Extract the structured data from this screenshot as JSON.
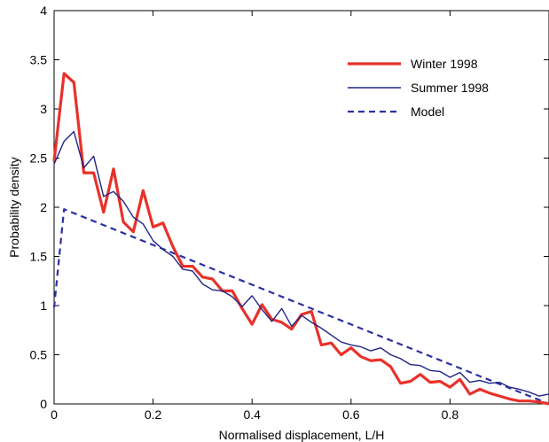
{
  "chart_data": {
    "type": "line",
    "title": "",
    "xlabel": "Normalised displacement, L/H",
    "ylabel": "Probability density",
    "xlim": [
      0,
      1
    ],
    "ylim": [
      0,
      4
    ],
    "xticks": [
      0,
      0.2,
      0.4,
      0.6,
      0.8
    ],
    "xtick_labels": [
      "0",
      "0.2",
      "0.4",
      "0.6",
      "0.8"
    ],
    "yticks": [
      0,
      0.5,
      1,
      1.5,
      2,
      2.5,
      3,
      3.5,
      4
    ],
    "ytick_labels": [
      "0",
      "0.5",
      "1",
      "1.5",
      "2",
      "2.5",
      "3",
      "3.5",
      "4"
    ],
    "grid": false,
    "legend_position": "top-right",
    "series": [
      {
        "name": "Winter 1998",
        "color": "#e8312a",
        "style": "solid-thick",
        "x": [
          0.0,
          0.02,
          0.04,
          0.06,
          0.08,
          0.1,
          0.12,
          0.14,
          0.16,
          0.18,
          0.2,
          0.22,
          0.24,
          0.26,
          0.28,
          0.3,
          0.32,
          0.34,
          0.36,
          0.38,
          0.4,
          0.42,
          0.44,
          0.46,
          0.48,
          0.5,
          0.52,
          0.54,
          0.56,
          0.58,
          0.6,
          0.62,
          0.64,
          0.66,
          0.68,
          0.7,
          0.72,
          0.74,
          0.76,
          0.78,
          0.8,
          0.82,
          0.84,
          0.86,
          0.88,
          0.9,
          0.92,
          0.94,
          0.96,
          0.98,
          1.0
        ],
        "y": [
          2.47,
          3.36,
          3.27,
          2.35,
          2.35,
          1.95,
          2.39,
          1.85,
          1.75,
          2.17,
          1.8,
          1.84,
          1.6,
          1.4,
          1.4,
          1.29,
          1.27,
          1.15,
          1.15,
          0.97,
          0.81,
          1.01,
          0.86,
          0.83,
          0.76,
          0.91,
          0.94,
          0.6,
          0.62,
          0.5,
          0.57,
          0.48,
          0.44,
          0.45,
          0.38,
          0.21,
          0.23,
          0.3,
          0.22,
          0.23,
          0.17,
          0.25,
          0.1,
          0.15,
          0.11,
          0.08,
          0.05,
          0.03,
          0.03,
          0.02,
          0.0
        ]
      },
      {
        "name": "Summer 1998",
        "color": "#1f2585",
        "style": "solid-thin",
        "x": [
          0.0,
          0.02,
          0.04,
          0.06,
          0.08,
          0.1,
          0.12,
          0.14,
          0.16,
          0.18,
          0.2,
          0.22,
          0.24,
          0.26,
          0.28,
          0.3,
          0.32,
          0.34,
          0.36,
          0.38,
          0.4,
          0.42,
          0.44,
          0.46,
          0.48,
          0.5,
          0.52,
          0.54,
          0.56,
          0.58,
          0.6,
          0.62,
          0.64,
          0.66,
          0.68,
          0.7,
          0.72,
          0.74,
          0.76,
          0.78,
          0.8,
          0.82,
          0.84,
          0.86,
          0.88,
          0.9,
          0.92,
          0.94,
          0.96,
          0.98,
          1.0
        ],
        "y": [
          2.44,
          2.67,
          2.77,
          2.4,
          2.52,
          2.11,
          2.16,
          2.06,
          1.9,
          1.83,
          1.66,
          1.57,
          1.5,
          1.37,
          1.35,
          1.22,
          1.16,
          1.15,
          1.09,
          0.99,
          1.1,
          0.96,
          0.84,
          0.97,
          0.79,
          0.9,
          0.83,
          0.77,
          0.7,
          0.63,
          0.6,
          0.58,
          0.54,
          0.57,
          0.5,
          0.46,
          0.4,
          0.39,
          0.34,
          0.33,
          0.27,
          0.32,
          0.22,
          0.24,
          0.21,
          0.22,
          0.17,
          0.15,
          0.12,
          0.08,
          0.1
        ]
      },
      {
        "name": "Model",
        "color": "#2b31a3",
        "style": "dashed",
        "x": [
          0.0,
          0.02,
          1.0
        ],
        "y": [
          0.98,
          1.98,
          0.0
        ]
      }
    ]
  }
}
